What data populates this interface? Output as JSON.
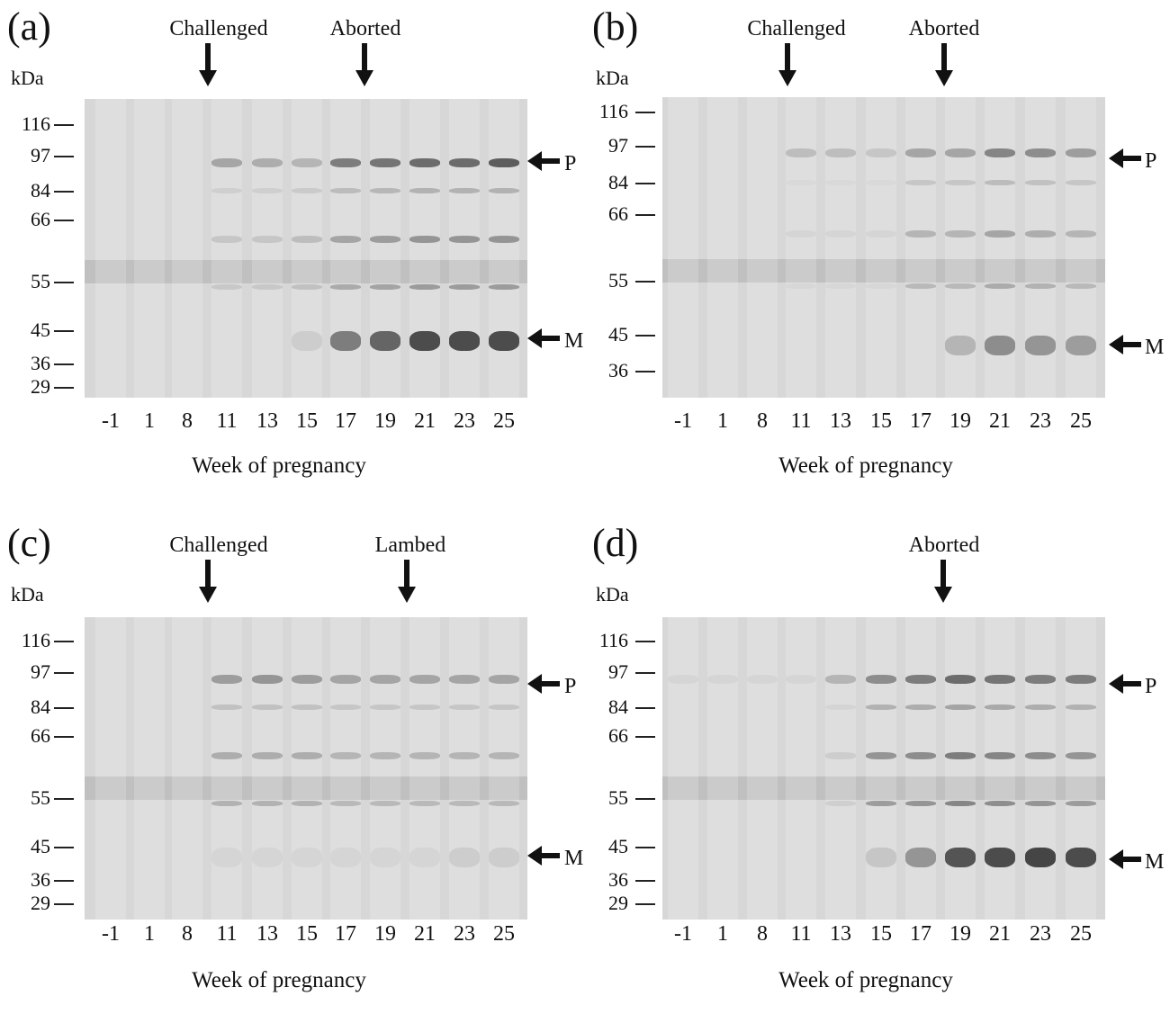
{
  "panels": [
    {
      "letter": "(a)",
      "kda_label": "kDa",
      "mw_markers": [
        "116",
        "97",
        "84",
        "66",
        "55",
        "45",
        "36",
        "29"
      ],
      "events": [
        "Challenged",
        "Aborted"
      ],
      "lanes": [
        "-1",
        "1",
        "8",
        "11",
        "13",
        "15",
        "17",
        "19",
        "21",
        "23",
        "25"
      ],
      "x_title": "Week of pregnancy",
      "bands": [
        "P",
        "M"
      ]
    },
    {
      "letter": "(b)",
      "kda_label": "kDa",
      "mw_markers": [
        "116",
        "97",
        "84",
        "66",
        "55",
        "45",
        "36"
      ],
      "events": [
        "Challenged",
        "Aborted"
      ],
      "lanes": [
        "-1",
        "1",
        "8",
        "11",
        "13",
        "15",
        "17",
        "19",
        "21",
        "23",
        "25"
      ],
      "x_title": "Week of pregnancy",
      "bands": [
        "P",
        "M"
      ]
    },
    {
      "letter": "(c)",
      "kda_label": "kDa",
      "mw_markers": [
        "116",
        "97",
        "84",
        "66",
        "55",
        "45",
        "36",
        "29"
      ],
      "events": [
        "Challenged",
        "Lambed"
      ],
      "lanes": [
        "-1",
        "1",
        "8",
        "11",
        "13",
        "15",
        "17",
        "19",
        "21",
        "23",
        "25"
      ],
      "x_title": "Week of pregnancy",
      "bands": [
        "P",
        "M"
      ]
    },
    {
      "letter": "(d)",
      "kda_label": "kDa",
      "mw_markers": [
        "116",
        "97",
        "84",
        "66",
        "55",
        "45",
        "36",
        "29"
      ],
      "events": [
        "Aborted"
      ],
      "lanes": [
        "-1",
        "1",
        "8",
        "11",
        "13",
        "15",
        "17",
        "19",
        "21",
        "23",
        "25"
      ],
      "x_title": "Week of pregnancy",
      "bands": [
        "P",
        "M"
      ]
    }
  ]
}
